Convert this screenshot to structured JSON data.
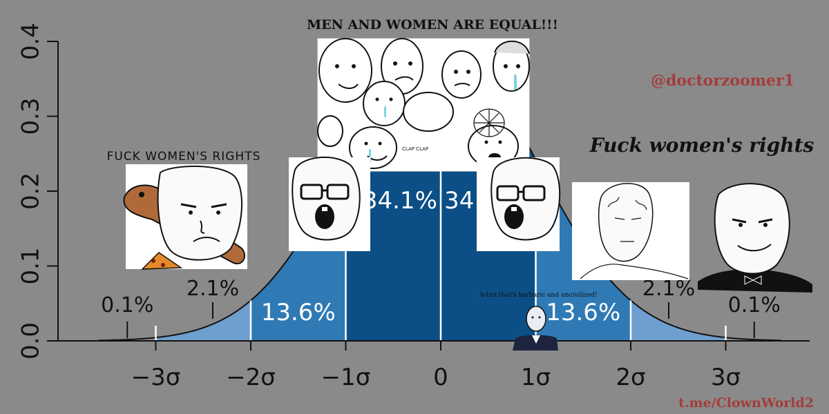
{
  "meme": {
    "top_caption": "MEN AND WOMEN ARE EQUAL!!!",
    "watermark_handle": "@doctorzoomer1",
    "watermark_link": "t.me/ClownWorld2",
    "left_caption": "FUCK WOMEN'S RIGHTS",
    "right_caption": "Fuck women's rights",
    "small_caption": "b-but that's barbaric and uncivilized!",
    "clap_text": "CLAP\nCLAP",
    "characters": [
      {
        "name": "caveman-wojak",
        "description": "wojak holding a wooden club"
      },
      {
        "name": "crowd-of-crying-wojaks",
        "description": "group of crying and soyjak faces"
      },
      {
        "name": "soyjak-left",
        "description": "glasses soyjak with open mouth"
      },
      {
        "name": "soyjak-right",
        "description": "glasses soyjak with open mouth"
      },
      {
        "name": "chad-wojak",
        "description": "stoic veiny chad face"
      },
      {
        "name": "suit-wojak",
        "description": "smug wojak in tuxedo"
      },
      {
        "name": "tiny-suit-wojak",
        "description": "small wojak in suit"
      }
    ]
  },
  "chart_data": {
    "type": "area",
    "xlim": [
      -3.9,
      3.9
    ],
    "ylim": [
      0,
      0.4
    ],
    "y_ticks": [
      "0.0",
      "0.1",
      "0.2",
      "0.3",
      "0.4"
    ],
    "x_ticks": [
      "−3σ",
      "−2σ",
      "−1σ",
      "0",
      "1σ",
      "2σ",
      "3σ"
    ],
    "x_tick_values": [
      -3,
      -2,
      -1,
      0,
      1,
      2,
      3
    ],
    "regions": [
      {
        "from": -3,
        "to": -2,
        "label": "2.1%",
        "color": "#6f9fcf"
      },
      {
        "from": -2,
        "to": -1,
        "label": "13.6%",
        "color": "#2f7ab5"
      },
      {
        "from": -1,
        "to": 0,
        "label": "34.1%",
        "color": "#0b4f86"
      },
      {
        "from": 0,
        "to": 1,
        "label": "34.1%",
        "color": "#0b4f86"
      },
      {
        "from": 1,
        "to": 2,
        "label": "13.6%",
        "color": "#2f7ab5"
      },
      {
        "from": 2,
        "to": 3,
        "label": "2.1%",
        "color": "#6f9fcf"
      }
    ],
    "tails": [
      {
        "side": "left",
        "label": "0.1%"
      },
      {
        "side": "right",
        "label": "0.1%"
      }
    ],
    "curve": "standard-normal-pdf",
    "background": "#8a8a8a"
  }
}
